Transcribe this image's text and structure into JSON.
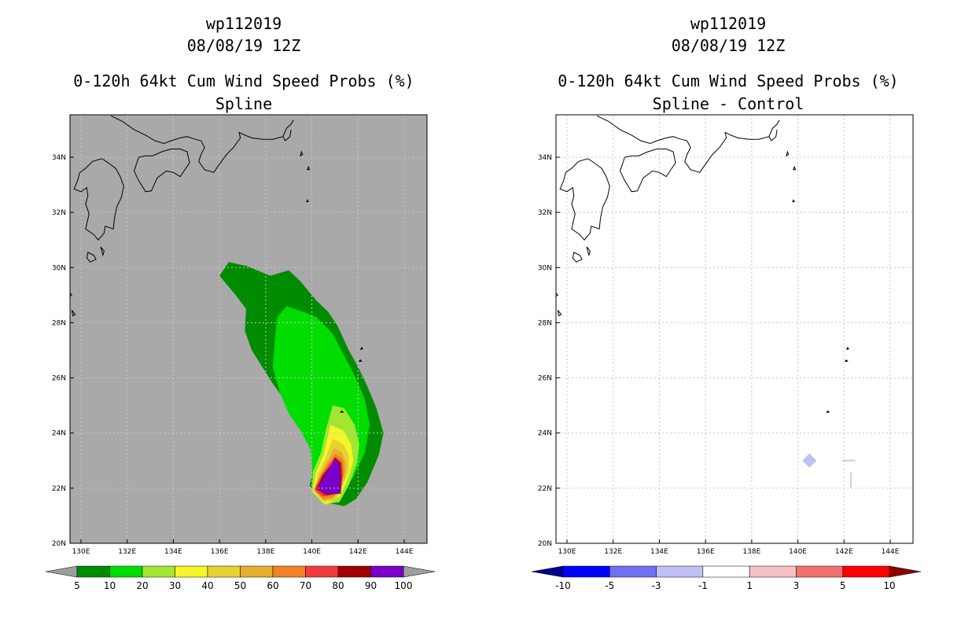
{
  "left_panel": {
    "title_lines": [
      "wp112019",
      "08/08/19 12Z",
      "0-120h 64kt Cum Wind Speed Probs (%)",
      "Spline"
    ]
  },
  "right_panel": {
    "title_lines": [
      "wp112019",
      "08/08/19 12Z",
      "0-120h 64kt Cum Wind Speed Probs (%)",
      "Spline - Control"
    ]
  },
  "chart_data": [
    {
      "type": "heatmap",
      "title": "0-120h 64kt Cum Wind Speed Probs (%)",
      "subtitle": "Spline",
      "storm": "wp112019",
      "date": "08/08/19 12Z",
      "x_range": [
        129.5,
        145
      ],
      "y_range": [
        20,
        35.5
      ],
      "x_ticks": [
        "130E",
        "132E",
        "134E",
        "136E",
        "138E",
        "140E",
        "142E",
        "144E"
      ],
      "y_ticks": [
        "20N",
        "22N",
        "24N",
        "26N",
        "28N",
        "30N",
        "32N",
        "34N"
      ],
      "colorbar": {
        "labels": [
          "5",
          "10",
          "20",
          "30",
          "40",
          "50",
          "60",
          "70",
          "80",
          "90",
          "100"
        ],
        "colors": [
          "#9e9e9e",
          "#008c00",
          "#00dd00",
          "#a0e632",
          "#f5f528",
          "#e6d232",
          "#e6af2d",
          "#f08228",
          "#f03c3c",
          "#a00000",
          "#7800c8",
          "#9e9e9e"
        ]
      },
      "contours": [
        {
          "level": 5,
          "color": "#008c00"
        },
        {
          "level": 10,
          "color": "#00dd00"
        },
        {
          "level": 20,
          "color": "#a0e632"
        },
        {
          "level": 30,
          "color": "#f5f528"
        },
        {
          "level": 40,
          "color": "#e6d232"
        },
        {
          "level": 50,
          "color": "#e6af2d"
        },
        {
          "level": 60,
          "color": "#f08228"
        },
        {
          "level": 70,
          "color": "#f03c3c"
        },
        {
          "level": 80,
          "color": "#a00000"
        },
        {
          "level": 90,
          "color": "#7800c8"
        }
      ],
      "background_color": "#a9a9a9"
    },
    {
      "type": "heatmap",
      "title": "0-120h 64kt Cum Wind Speed Probs (%)",
      "subtitle": "Spline - Control",
      "storm": "wp112019",
      "date": "08/08/19 12Z",
      "x_range": [
        129.5,
        145
      ],
      "y_range": [
        20,
        35.5
      ],
      "x_ticks": [
        "130E",
        "132E",
        "134E",
        "136E",
        "138E",
        "140E",
        "142E",
        "144E"
      ],
      "y_ticks": [
        "20N",
        "22N",
        "24N",
        "26N",
        "28N",
        "30N",
        "32N",
        "34N"
      ],
      "colorbar": {
        "labels": [
          "-10",
          "-5",
          "-3",
          "-1",
          "1",
          "3",
          "5",
          "10"
        ],
        "colors": [
          "#00008c",
          "#0000ff",
          "#7070f0",
          "#c0c0f5",
          "#ffffff",
          "#f5c0c0",
          "#f07070",
          "#ff0000",
          "#8c0000"
        ]
      },
      "anomalies": [
        {
          "lon": 140.5,
          "lat": 23.0,
          "range": "-3 to -1",
          "color": "#c0c0f5"
        },
        {
          "lon": 142.2,
          "lat": 23.0,
          "range": "1 to 3",
          "color": "#f5c0c0"
        },
        {
          "lon": 142.3,
          "lat": 22.3,
          "range": "1 to 3",
          "color": "#f5c0c0"
        }
      ],
      "background_color": "#ffffff"
    }
  ]
}
